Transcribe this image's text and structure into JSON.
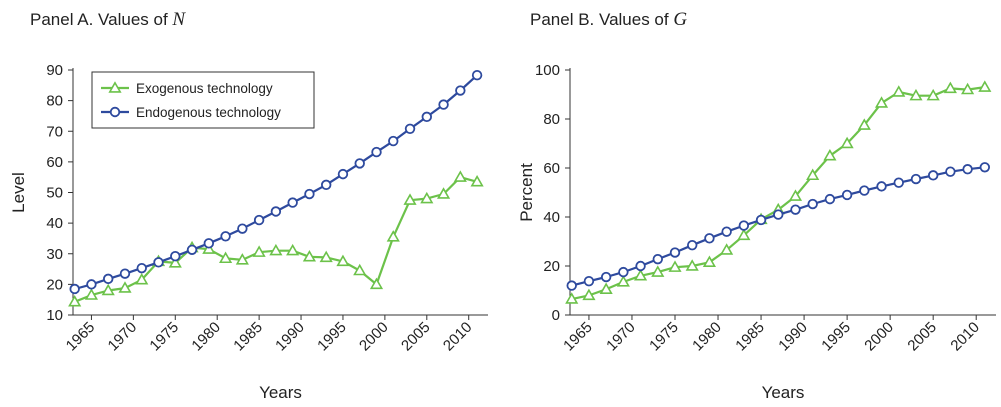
{
  "colors": {
    "exogenous": "#6cc24a",
    "endogenous": "#2e4a9e",
    "axis": "#333333"
  },
  "chart_data": [
    {
      "type": "line",
      "title_prefix": "Panel A. Values of ",
      "title_var": "N",
      "xlabel": "Years",
      "ylabel": "Level",
      "xlim": [
        1962.8,
        2012.3
      ],
      "ylim": [
        10,
        90
      ],
      "yticks": [
        10,
        20,
        30,
        40,
        50,
        60,
        70,
        80,
        90
      ],
      "xticks": [
        1965,
        1970,
        1975,
        1980,
        1985,
        1990,
        1995,
        2000,
        2005,
        2010
      ],
      "legend_position": "top-left",
      "x": [
        1963,
        1965,
        1967,
        1969,
        1971,
        1973,
        1975,
        1977,
        1979,
        1981,
        1983,
        1985,
        1987,
        1989,
        1991,
        1993,
        1995,
        1997,
        1999,
        2001,
        2003,
        2005,
        2007,
        2009,
        2011
      ],
      "series": [
        {
          "name": "Exogenous technology",
          "marker": "triangle",
          "color_key": "exogenous",
          "values": [
            14.3,
            16.5,
            18.0,
            18.8,
            21.5,
            27.5,
            27.0,
            32.0,
            31.5,
            28.5,
            28.0,
            30.5,
            31.0,
            31.0,
            29.0,
            28.8,
            27.5,
            24.5,
            20.0,
            35.5,
            47.5,
            48.0,
            49.5,
            55.0,
            53.5
          ]
        },
        {
          "name": "Endogenous technology",
          "marker": "circle",
          "color_key": "endogenous",
          "values": [
            18.5,
            20.0,
            21.8,
            23.5,
            25.3,
            27.2,
            29.2,
            31.3,
            33.4,
            35.7,
            38.2,
            41.0,
            43.8,
            46.7,
            49.5,
            52.5,
            56.0,
            59.5,
            63.2,
            66.8,
            70.8,
            74.7,
            78.7,
            83.3,
            88.3
          ]
        }
      ]
    },
    {
      "type": "line",
      "title_prefix": "Panel B. Values of ",
      "title_var": "G",
      "xlabel": "Years",
      "ylabel": "Percent",
      "xlim": [
        1962.8,
        2012.3
      ],
      "ylim": [
        0,
        100
      ],
      "yticks": [
        0,
        20,
        40,
        60,
        80,
        100
      ],
      "xticks": [
        1965,
        1970,
        1975,
        1980,
        1985,
        1990,
        1995,
        2000,
        2005,
        2010
      ],
      "x": [
        1963,
        1965,
        1967,
        1969,
        1971,
        1973,
        1975,
        1977,
        1979,
        1981,
        1983,
        1985,
        1987,
        1989,
        1991,
        1993,
        1995,
        1997,
        1999,
        2001,
        2003,
        2005,
        2007,
        2009,
        2011
      ],
      "series": [
        {
          "name": "Exogenous technology",
          "marker": "triangle",
          "color_key": "exogenous",
          "values": [
            6.5,
            8.0,
            10.5,
            13.5,
            16.0,
            17.5,
            19.5,
            20.0,
            21.5,
            26.5,
            32.5,
            39.0,
            43.0,
            48.5,
            57.0,
            65.0,
            70.0,
            77.5,
            86.5,
            91.0,
            89.5,
            89.5,
            92.5,
            92.0,
            93.0
          ]
        },
        {
          "name": "Endogenous technology",
          "marker": "circle",
          "color_key": "endogenous",
          "values": [
            12.0,
            13.8,
            15.5,
            17.5,
            20.0,
            22.8,
            25.5,
            28.5,
            31.3,
            34.0,
            36.5,
            38.8,
            41.0,
            43.0,
            45.3,
            47.3,
            49.0,
            50.8,
            52.5,
            54.0,
            55.5,
            57.0,
            58.5,
            59.5,
            60.3
          ]
        }
      ]
    }
  ]
}
